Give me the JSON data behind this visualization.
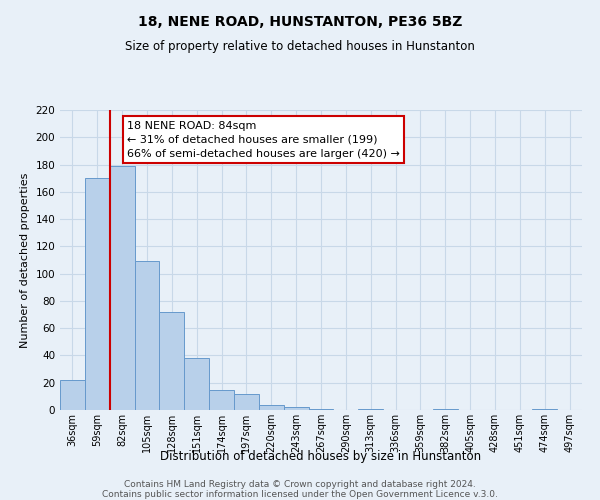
{
  "title": "18, NENE ROAD, HUNSTANTON, PE36 5BZ",
  "subtitle": "Size of property relative to detached houses in Hunstanton",
  "xlabel": "Distribution of detached houses by size in Hunstanton",
  "ylabel": "Number of detached properties",
  "categories": [
    "36sqm",
    "59sqm",
    "82sqm",
    "105sqm",
    "128sqm",
    "151sqm",
    "174sqm",
    "197sqm",
    "220sqm",
    "243sqm",
    "267sqm",
    "290sqm",
    "313sqm",
    "336sqm",
    "359sqm",
    "382sqm",
    "405sqm",
    "428sqm",
    "451sqm",
    "474sqm",
    "497sqm"
  ],
  "values": [
    22,
    170,
    179,
    109,
    72,
    38,
    15,
    12,
    4,
    2,
    1,
    0,
    1,
    0,
    0,
    1,
    0,
    0,
    0,
    1,
    0
  ],
  "bar_color": "#b8d0ea",
  "bar_edge_color": "#6699cc",
  "red_line_index": 2,
  "annotation_title": "18 NENE ROAD: 84sqm",
  "annotation_line1": "← 31% of detached houses are smaller (199)",
  "annotation_line2": "66% of semi-detached houses are larger (420) →",
  "annotation_box_facecolor": "#ffffff",
  "annotation_box_edgecolor": "#cc0000",
  "red_line_color": "#cc0000",
  "ylim": [
    0,
    220
  ],
  "yticks": [
    0,
    20,
    40,
    60,
    80,
    100,
    120,
    140,
    160,
    180,
    200,
    220
  ],
  "grid_color": "#c8d8e8",
  "background_color": "#e8f0f8",
  "plot_bg_color": "#e8f0f8",
  "footer_line1": "Contains HM Land Registry data © Crown copyright and database right 2024.",
  "footer_line2": "Contains public sector information licensed under the Open Government Licence v.3.0."
}
